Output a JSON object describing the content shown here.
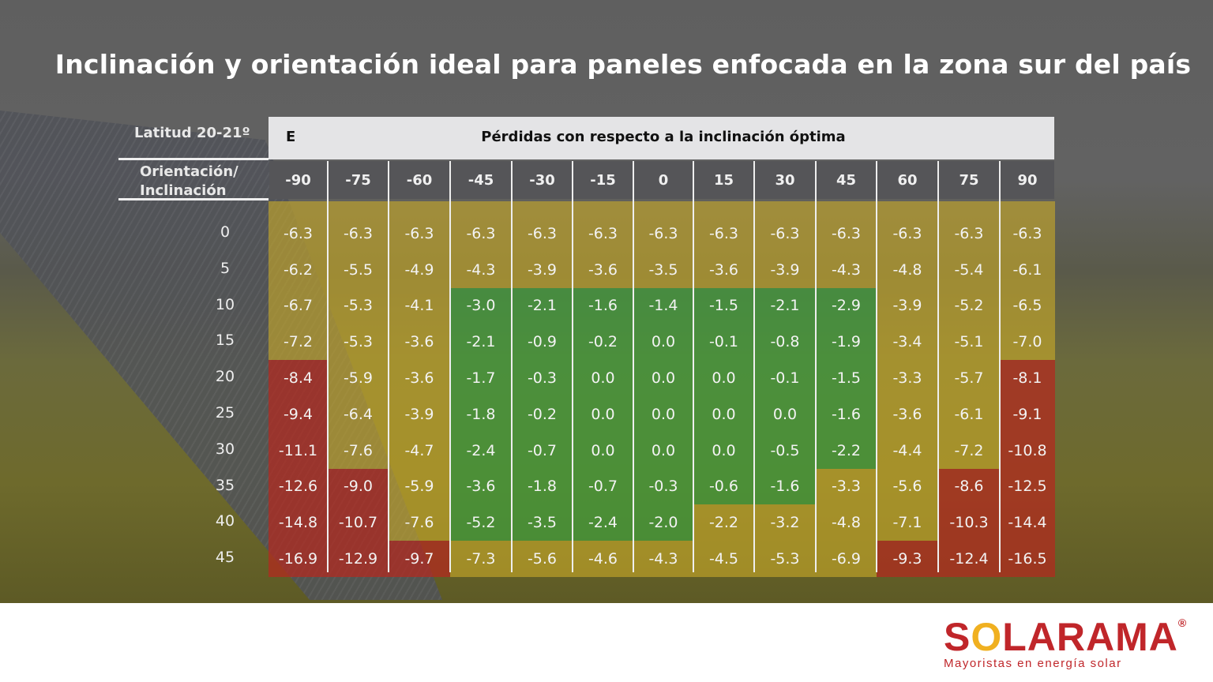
{
  "title": "Inclinación y orientación ideal para paneles enfocada en la zona sur del país",
  "colors": {
    "yellow": "#c8aa28",
    "green": "#3ca03c",
    "red": "#b4281e",
    "header_bg": "#e4e4e6"
  },
  "logo": {
    "name": "SOLARAMA",
    "tagline": "Mayoristas en energía solar",
    "primary": "#c0262a",
    "accent": "#f0b020"
  },
  "chart_data": {
    "type": "heatmap",
    "title": "Pérdidas con respecto a la inclinación óptima",
    "corner_label": "Latitud 20-21º",
    "row_header": "Orientación/ Inclinación",
    "direction_label": "E",
    "columns": [
      "-90",
      "-75",
      "-60",
      "-45",
      "-30",
      "-15",
      "0",
      "15",
      "30",
      "45",
      "60",
      "75",
      "90"
    ],
    "rows": [
      "0",
      "5",
      "10",
      "15",
      "20",
      "25",
      "30",
      "35",
      "40",
      "45"
    ],
    "values": [
      [
        -6.3,
        -6.3,
        -6.3,
        -6.3,
        -6.3,
        -6.3,
        -6.3,
        -6.3,
        -6.3,
        -6.3,
        -6.3,
        -6.3,
        -6.3
      ],
      [
        -6.2,
        -5.5,
        -4.9,
        -4.3,
        -3.9,
        -3.6,
        -3.5,
        -3.6,
        -3.9,
        -4.3,
        -4.8,
        -5.4,
        -6.1
      ],
      [
        -6.7,
        -5.3,
        -4.1,
        -3.0,
        -2.1,
        -1.6,
        -1.4,
        -1.5,
        -2.1,
        -2.9,
        -3.9,
        -5.2,
        -6.5
      ],
      [
        -7.2,
        -5.3,
        -3.6,
        -2.1,
        -0.9,
        -0.2,
        0.0,
        -0.1,
        -0.8,
        -1.9,
        -3.4,
        -5.1,
        -7.0
      ],
      [
        -8.4,
        -5.9,
        -3.6,
        -1.7,
        -0.3,
        0.0,
        0.0,
        0.0,
        -0.1,
        -1.5,
        -3.3,
        -5.7,
        -8.1
      ],
      [
        -9.4,
        -6.4,
        -3.9,
        -1.8,
        -0.2,
        0.0,
        0.0,
        0.0,
        0.0,
        -1.6,
        -3.6,
        -6.1,
        -9.1
      ],
      [
        -11.1,
        -7.6,
        -4.7,
        -2.4,
        -0.7,
        0.0,
        0.0,
        0.0,
        -0.5,
        -2.2,
        -4.4,
        -7.2,
        -10.8
      ],
      [
        -12.6,
        -9.0,
        -5.9,
        -3.6,
        -1.8,
        -0.7,
        -0.3,
        -0.6,
        -1.6,
        -3.3,
        -5.6,
        -8.6,
        -12.5
      ],
      [
        -14.8,
        -10.7,
        -7.6,
        -5.2,
        -3.5,
        -2.4,
        -2.0,
        -2.2,
        -3.2,
        -4.8,
        -7.1,
        -10.3,
        -14.4
      ],
      [
        -16.9,
        -12.9,
        -9.7,
        -7.3,
        -5.6,
        -4.6,
        -4.3,
        -4.5,
        -5.3,
        -6.9,
        -9.3,
        -12.4,
        -16.5
      ]
    ],
    "color_classes": [
      "yyyyyyyyyyyyy",
      "yyyyyyyyyyyyy",
      "yyygggggggyyy",
      "yyygggggggyyy",
      "ryygggggggyyr",
      "ryygggggggyyr",
      "ryygggggggyyr",
      "rryggggggyyrr",
      "rryggggyyyyrr",
      "rrryyyyyyyrrr"
    ]
  }
}
